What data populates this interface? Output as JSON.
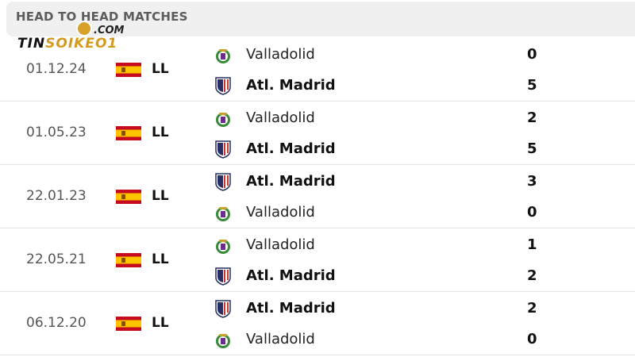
{
  "header": {
    "title": "HEAD TO HEAD MATCHES"
  },
  "watermark": {
    "domain": ".COM",
    "name_a": "TIN",
    "name_b": "SOIKEO1"
  },
  "matches": [
    {
      "date": "01.12.24",
      "competition": "LL",
      "country": "Spain",
      "home": {
        "name": "Valladolid",
        "score": "0",
        "winner": false,
        "crest": "valladolid-crest"
      },
      "away": {
        "name": "Atl. Madrid",
        "score": "5",
        "winner": true,
        "crest": "atletico-crest"
      }
    },
    {
      "date": "01.05.23",
      "competition": "LL",
      "country": "Spain",
      "home": {
        "name": "Valladolid",
        "score": "2",
        "winner": false,
        "crest": "valladolid-crest"
      },
      "away": {
        "name": "Atl. Madrid",
        "score": "5",
        "winner": true,
        "crest": "atletico-crest"
      }
    },
    {
      "date": "22.01.23",
      "competition": "LL",
      "country": "Spain",
      "home": {
        "name": "Atl. Madrid",
        "score": "3",
        "winner": true,
        "crest": "atletico-crest"
      },
      "away": {
        "name": "Valladolid",
        "score": "0",
        "winner": false,
        "crest": "valladolid-crest"
      }
    },
    {
      "date": "22.05.21",
      "competition": "LL",
      "country": "Spain",
      "home": {
        "name": "Valladolid",
        "score": "1",
        "winner": false,
        "crest": "valladolid-crest"
      },
      "away": {
        "name": "Atl. Madrid",
        "score": "2",
        "winner": true,
        "crest": "atletico-crest"
      }
    },
    {
      "date": "06.12.20",
      "competition": "LL",
      "country": "Spain",
      "home": {
        "name": "Atl. Madrid",
        "score": "2",
        "winner": true,
        "crest": "atletico-crest"
      },
      "away": {
        "name": "Valladolid",
        "score": "0",
        "winner": false,
        "crest": "valladolid-crest"
      }
    }
  ]
}
